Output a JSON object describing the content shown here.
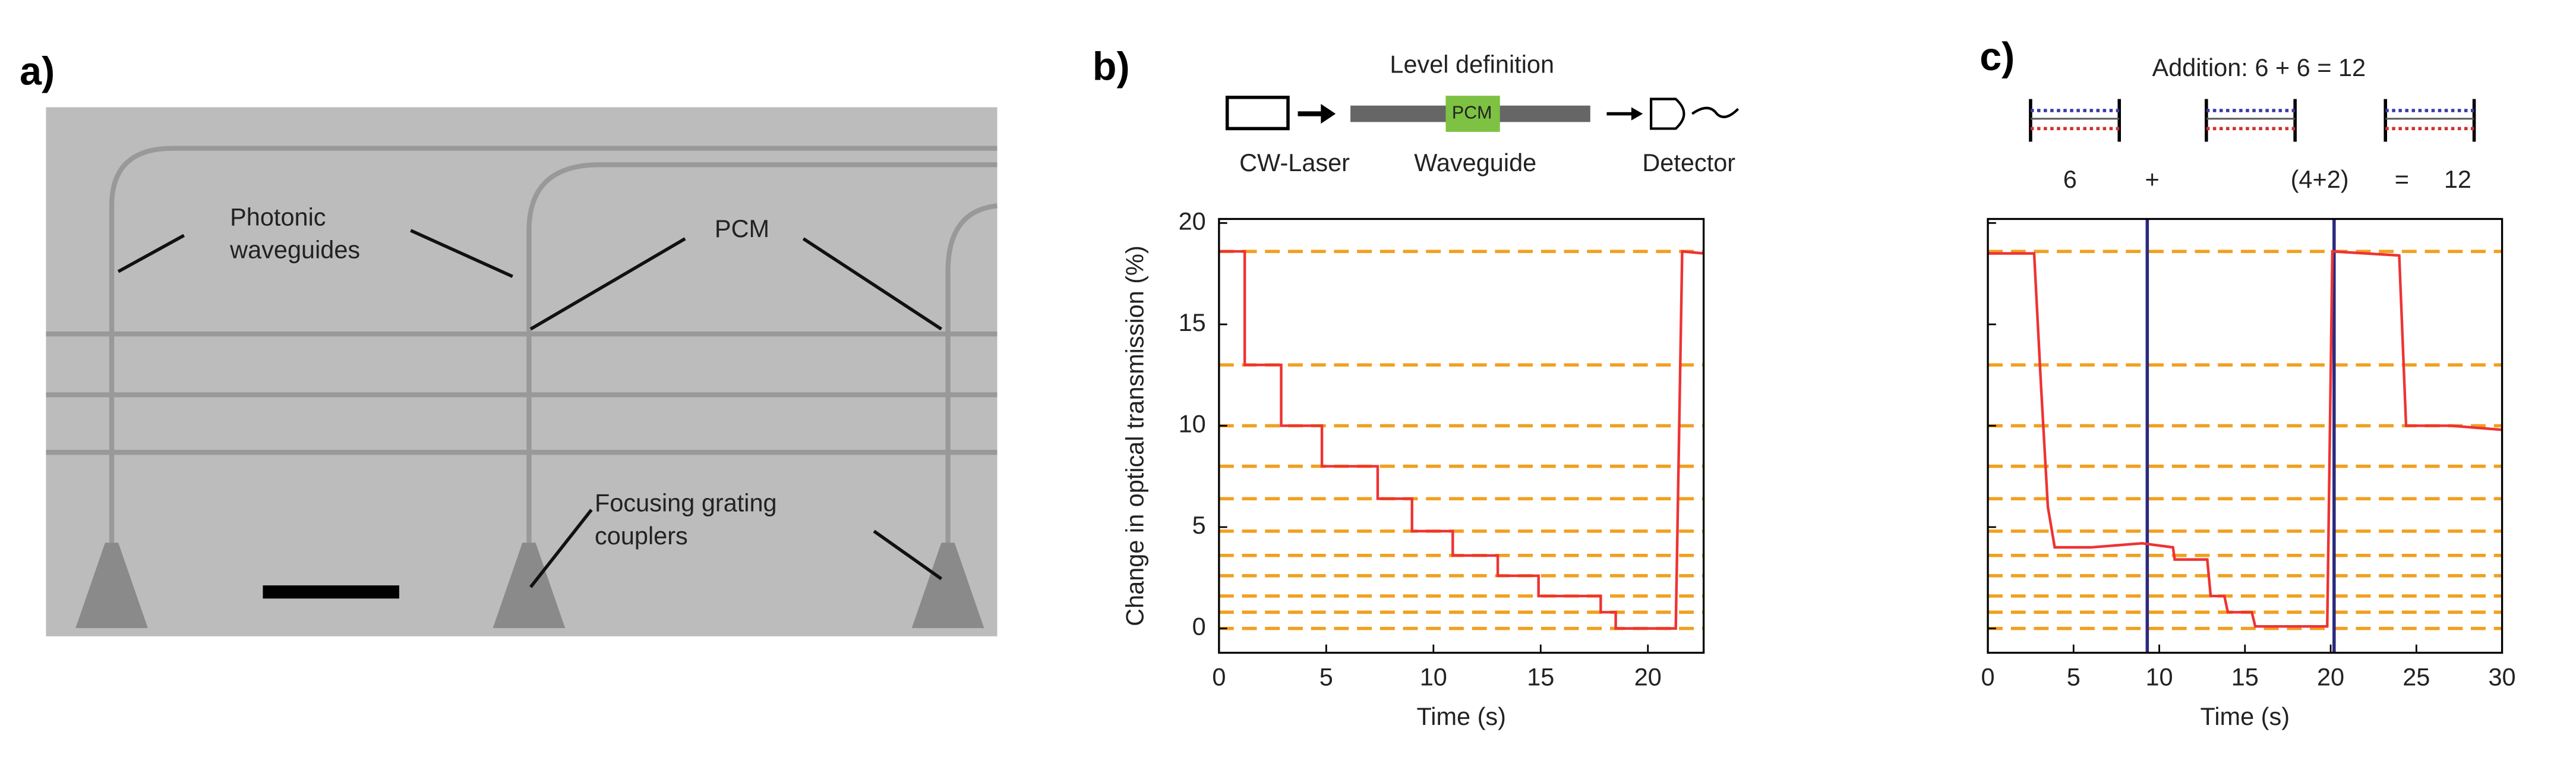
{
  "panel_labels": [
    "a)",
    "b)",
    "c)"
  ],
  "micrograph": {
    "photonic_waveguides": [
      "Photonic",
      "waveguides"
    ],
    "pcm": "PCM",
    "grating_couplers": [
      "Focusing grating",
      "couplers"
    ]
  },
  "schematic_b": {
    "title": "Level definition",
    "source": "CW-Laser",
    "pcm": "PCM",
    "waveguide": "Waveguide",
    "detector": "Detector"
  },
  "schematic_c": {
    "title": "Addition: 6 + 6 = 12",
    "terms": [
      "6",
      "+",
      "(4+2)",
      "=",
      "12"
    ]
  },
  "chart_data": [
    {
      "type": "line",
      "xlabel": "Time (s)",
      "ylabel": "Change in optical transmission (%)",
      "xlim": [
        0,
        22.6
      ],
      "ylim": [
        -1.2,
        20.2
      ],
      "xticks": [
        0,
        5,
        10,
        15,
        20
      ],
      "yticks": [
        0,
        5,
        10,
        15,
        20
      ],
      "show_ytick_labels": true,
      "levels": [
        18.6,
        13,
        10,
        8,
        6.4,
        4.8,
        3.6,
        2.6,
        1.6,
        0.8,
        0
      ],
      "level_color": "#f0a020",
      "series": [
        {
          "color": "#ee3333",
          "x": [
            0,
            1.2,
            1.2,
            2.9,
            2.9,
            4.8,
            4.8,
            7.4,
            7.4,
            9,
            9,
            10.9,
            10.9,
            13,
            13,
            14.9,
            14.9,
            17.8,
            17.8,
            18.5,
            18.5,
            21.3,
            21.6,
            22.6
          ],
          "values": [
            18.6,
            18.6,
            13,
            13,
            10,
            10,
            8,
            8,
            6.4,
            6.4,
            4.8,
            4.8,
            3.6,
            3.6,
            2.6,
            2.6,
            1.6,
            1.6,
            0.8,
            0.8,
            0,
            0,
            18.6,
            18.5
          ]
        }
      ]
    },
    {
      "type": "line",
      "xlabel": "Time (s)",
      "xlim": [
        0,
        30
      ],
      "ylim": [
        -1.2,
        20.2
      ],
      "xticks": [
        0,
        5,
        10,
        15,
        20,
        25,
        30
      ],
      "yticks": [
        0,
        5,
        10,
        15,
        20
      ],
      "show_ytick_labels": false,
      "levels": [
        18.6,
        13,
        10,
        8,
        6.4,
        4.8,
        3.6,
        2.6,
        1.6,
        0.8,
        0
      ],
      "level_color": "#f0a020",
      "vlines": [
        9.3,
        20.2
      ],
      "vline_color": "#2a2a80",
      "series": [
        {
          "color": "#ee3333",
          "x": [
            0,
            2.7,
            3.1,
            3.5,
            3.9,
            6,
            9,
            10.8,
            10.9,
            12.8,
            13,
            13.8,
            14,
            15.4,
            15.6,
            19.8,
            20.1,
            24,
            24.4,
            27,
            30
          ],
          "values": [
            18.5,
            18.5,
            12,
            6,
            4,
            4,
            4.2,
            4,
            3.4,
            3.4,
            1.6,
            1.6,
            0.8,
            0.8,
            0.1,
            0.1,
            18.6,
            18.4,
            10,
            10,
            9.8
          ]
        }
      ]
    }
  ]
}
